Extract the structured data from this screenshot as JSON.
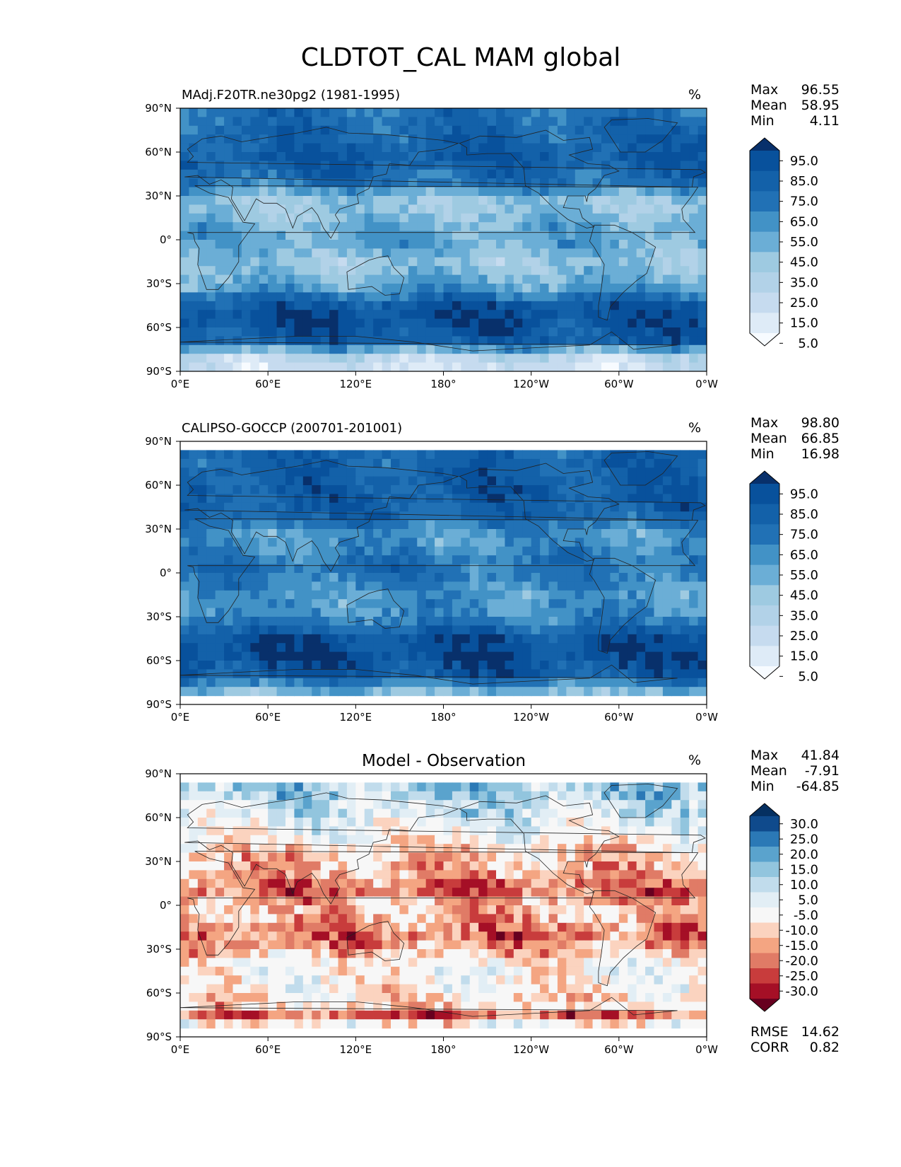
{
  "title": "CLDTOT_CAL MAM global",
  "x_ticks": [
    "0°E",
    "60°E",
    "120°E",
    "180°",
    "120°W",
    "60°W",
    "0°W"
  ],
  "y_ticks": [
    "90°N",
    "60°N",
    "30°N",
    "0°",
    "30°S",
    "60°S",
    "90°S"
  ],
  "colors": {
    "blues": [
      "#f7fbff",
      "#deebf7",
      "#c6dbef",
      "#b2d2e8",
      "#9ecae1",
      "#6baed6",
      "#4292c6",
      "#2171b5",
      "#1361a9",
      "#08519c",
      "#08306b"
    ],
    "diff": [
      "#67001f",
      "#a50f26",
      "#c83c3c",
      "#e07b66",
      "#f4a582",
      "#fbd3bf",
      "#f7f7f7",
      "#e2eef5",
      "#c1dcec",
      "#92c5de",
      "#5aa3cd",
      "#2b79b6",
      "#0f4a8c",
      "#053061"
    ],
    "coast": "#222222"
  },
  "chart_data": [
    {
      "type": "heatmap",
      "panel": "model",
      "title": "MAdj.F20TR.ne30pg2 (1981-1995)",
      "units": "%",
      "stats": [
        {
          "label": "Max",
          "value": "96.55"
        },
        {
          "label": "Mean",
          "value": "58.95"
        },
        {
          "label": "Min",
          "value": "4.11"
        }
      ],
      "x_range": [
        0,
        360
      ],
      "y_range": [
        -90,
        90
      ],
      "colorbar_levels": [
        "95.0",
        "85.0",
        "75.0",
        "65.0",
        "55.0",
        "45.0",
        "35.0",
        "25.0",
        "15.0",
        "5.0"
      ],
      "zonal_profile": [
        [
          -90,
          15
        ],
        [
          -80,
          25
        ],
        [
          -70,
          80
        ],
        [
          -55,
          92
        ],
        [
          -45,
          85
        ],
        [
          -30,
          50
        ],
        [
          -15,
          40
        ],
        [
          0,
          55
        ],
        [
          10,
          50
        ],
        [
          25,
          35
        ],
        [
          40,
          72
        ],
        [
          55,
          82
        ],
        [
          70,
          78
        ],
        [
          90,
          70
        ]
      ]
    },
    {
      "type": "heatmap",
      "panel": "observation",
      "title": "CALIPSO-GOCCP (200701-201001)",
      "units": "%",
      "stats": [
        {
          "label": "Max",
          "value": "98.80"
        },
        {
          "label": "Mean",
          "value": "66.85"
        },
        {
          "label": "Min",
          "value": "16.98"
        }
      ],
      "x_range": [
        0,
        360
      ],
      "y_range": [
        -90,
        90
      ],
      "colorbar_levels": [
        "95.0",
        "85.0",
        "75.0",
        "65.0",
        "55.0",
        "45.0",
        "35.0",
        "25.0",
        "15.0",
        "5.0"
      ],
      "zonal_profile": [
        [
          -82,
          45
        ],
        [
          -70,
          82
        ],
        [
          -55,
          93
        ],
        [
          -45,
          88
        ],
        [
          -30,
          62
        ],
        [
          -15,
          58
        ],
        [
          0,
          70
        ],
        [
          10,
          68
        ],
        [
          25,
          55
        ],
        [
          40,
          78
        ],
        [
          55,
          83
        ],
        [
          70,
          80
        ],
        [
          82,
          78
        ]
      ]
    },
    {
      "type": "heatmap",
      "panel": "difference",
      "title": "Model - Observation",
      "units": "%",
      "stats": [
        {
          "label": "Max",
          "value": "41.84"
        },
        {
          "label": "Mean",
          "value": "-7.91"
        },
        {
          "label": "Min",
          "value": "-64.85"
        }
      ],
      "metrics": [
        {
          "label": "RMSE",
          "value": "14.62"
        },
        {
          "label": "CORR",
          "value": "0.82"
        }
      ],
      "x_range": [
        0,
        360
      ],
      "y_range": [
        -90,
        90
      ],
      "colorbar_levels": [
        "30.0",
        "25.0",
        "20.0",
        "15.0",
        "10.0",
        "5.0",
        "-5.0",
        "-10.0",
        "-15.0",
        "-20.0",
        "-25.0",
        "-30.0"
      ],
      "zonal_profile": [
        [
          -82,
          0
        ],
        [
          -75,
          -18
        ],
        [
          -70,
          -8
        ],
        [
          -55,
          0
        ],
        [
          -40,
          0
        ],
        [
          -30,
          -12
        ],
        [
          -20,
          -18
        ],
        [
          -10,
          -10
        ],
        [
          0,
          -8
        ],
        [
          10,
          -20
        ],
        [
          20,
          -12
        ],
        [
          35,
          -8
        ],
        [
          50,
          2
        ],
        [
          70,
          12
        ],
        [
          80,
          16
        ]
      ]
    }
  ]
}
